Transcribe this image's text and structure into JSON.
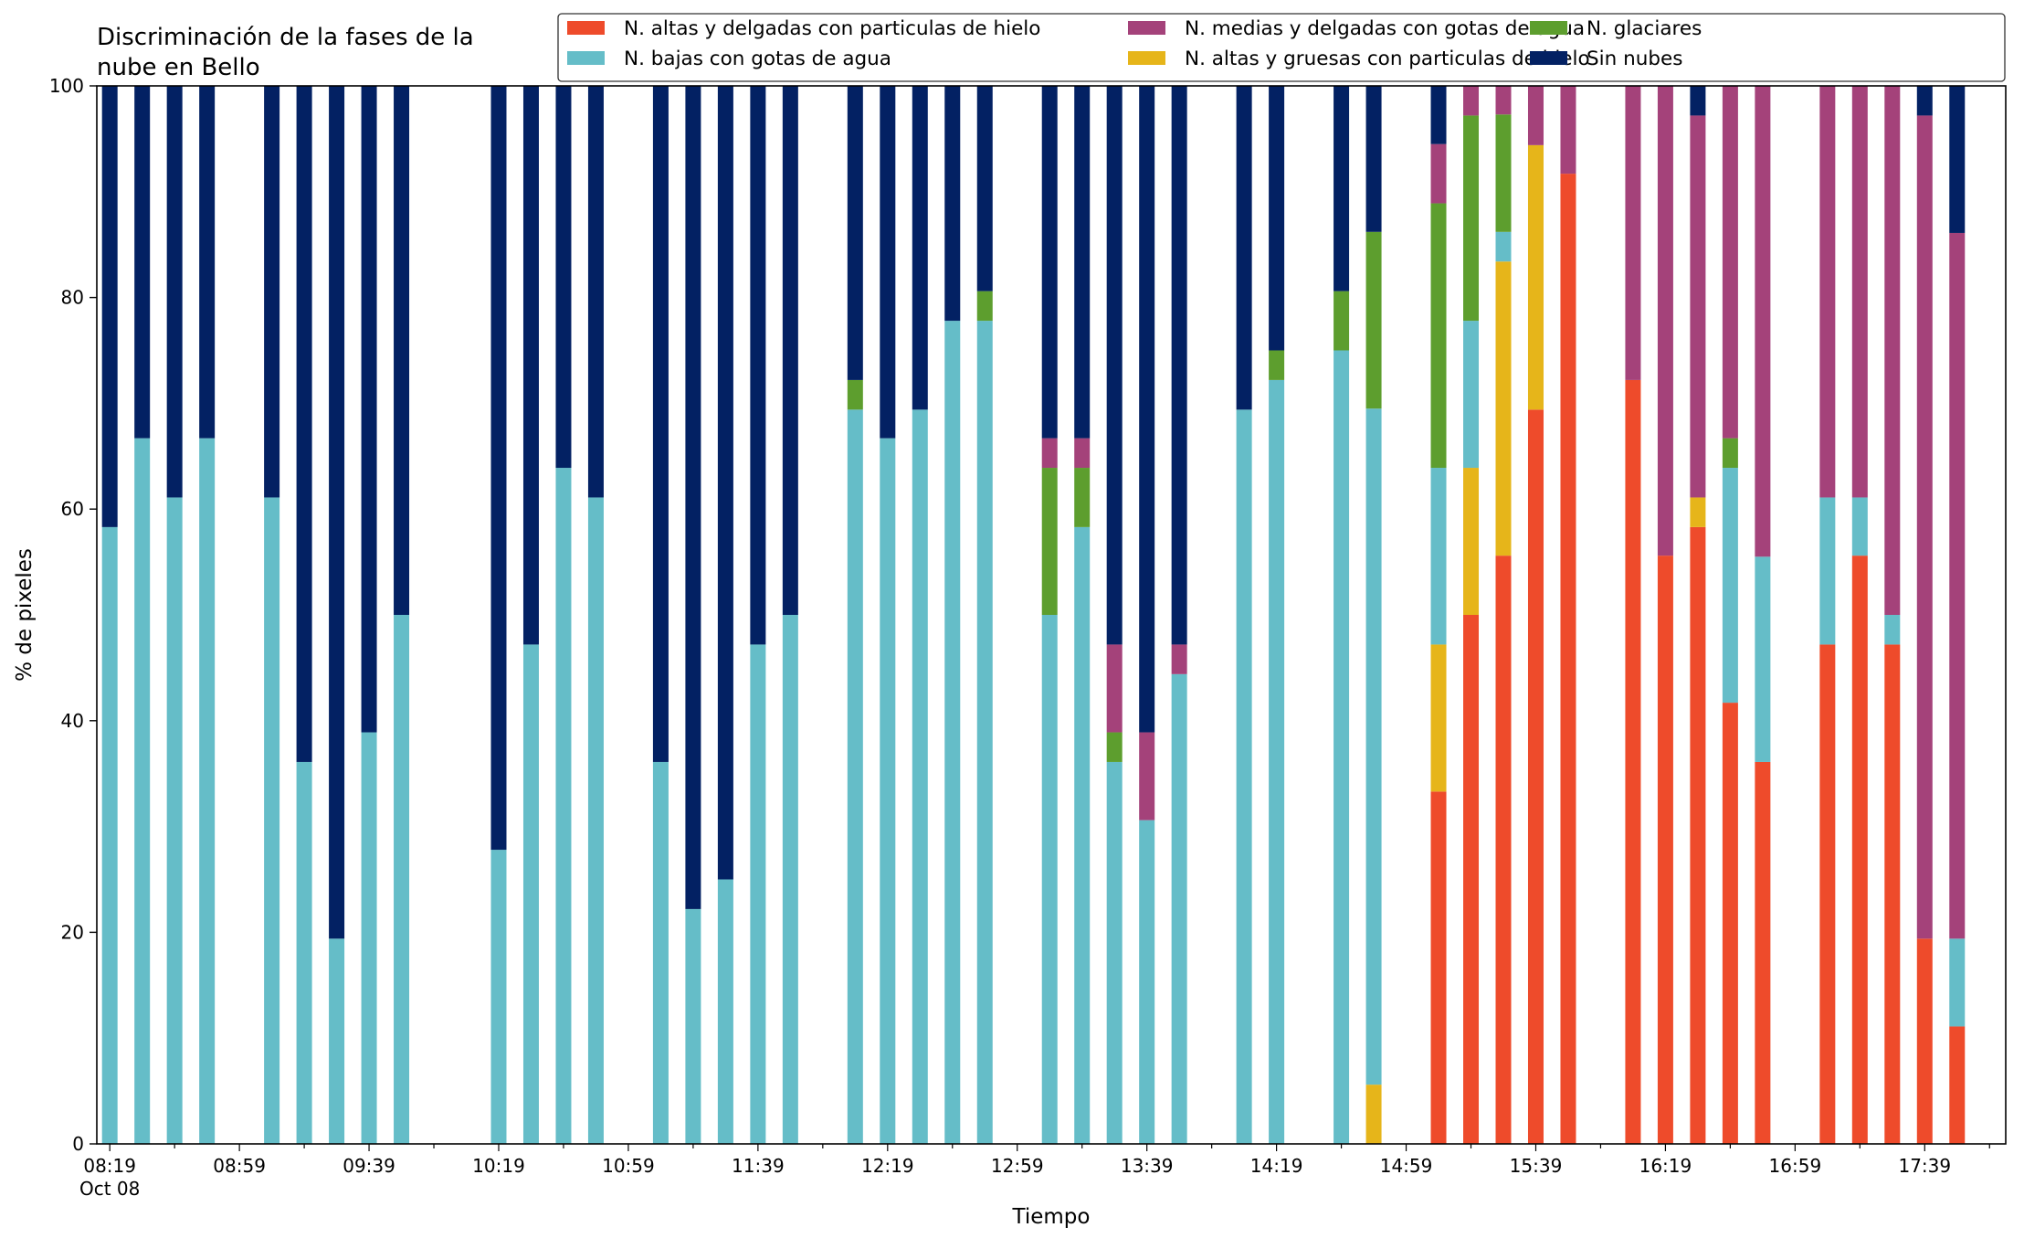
{
  "chart_data": {
    "type": "bar",
    "stacked": true,
    "title": "Discriminación de la fases de la\nnube en Bello",
    "xlabel": "Tiempo",
    "ylabel": "% de pixeles",
    "ylim": [
      0,
      100
    ],
    "yticks": [
      0,
      20,
      40,
      60,
      80,
      100
    ],
    "xlim_minutes": [
      "08:15",
      "18:04"
    ],
    "x_major_ticks": [
      {
        "time": "08:19",
        "label": "08:19",
        "sublabel": "Oct 08"
      },
      {
        "time": "08:59",
        "label": "08:59"
      },
      {
        "time": "09:39",
        "label": "09:39"
      },
      {
        "time": "10:19",
        "label": "10:19"
      },
      {
        "time": "10:59",
        "label": "10:59"
      },
      {
        "time": "11:39",
        "label": "11:39"
      },
      {
        "time": "12:19",
        "label": "12:19"
      },
      {
        "time": "12:59",
        "label": "12:59"
      },
      {
        "time": "13:39",
        "label": "13:39"
      },
      {
        "time": "14:19",
        "label": "14:19"
      },
      {
        "time": "14:59",
        "label": "14:59"
      },
      {
        "time": "15:39",
        "label": "15:39"
      },
      {
        "time": "16:19",
        "label": "16:19"
      },
      {
        "time": "16:59",
        "label": "16:59"
      },
      {
        "time": "17:39",
        "label": "17:39"
      }
    ],
    "grid": false,
    "legend_position": "top-right",
    "series": [
      {
        "name": "N. altas y delgadas con particulas de hielo",
        "color": "#EE4B2B"
      },
      {
        "name": "N. altas y gruesas con particulas de hielo",
        "color": "#E6B51A"
      },
      {
        "name": "N. bajas con gotas de agua",
        "color": "#65BDC8"
      },
      {
        "name": "N. glaciares",
        "color": "#5D9E2E"
      },
      {
        "name": "N. medias y delgadas con gotas de agua",
        "color": "#A4427A"
      },
      {
        "name": "Sin nubes",
        "color": "#032163"
      }
    ],
    "legend_order": [
      0,
      2,
      4,
      1,
      3,
      5
    ],
    "bars": [
      {
        "time": "08:19",
        "values": [
          0,
          0,
          58.3,
          0,
          0,
          41.7
        ]
      },
      {
        "time": "08:29",
        "values": [
          0,
          0,
          66.7,
          0,
          0,
          33.3
        ]
      },
      {
        "time": "08:39",
        "values": [
          0,
          0,
          61.1,
          0,
          0,
          38.9
        ]
      },
      {
        "time": "08:49",
        "values": [
          0,
          0,
          66.7,
          0,
          0,
          33.3
        ]
      },
      {
        "time": "09:09",
        "values": [
          0,
          0,
          61.1,
          0,
          0,
          38.9
        ]
      },
      {
        "time": "09:19",
        "values": [
          0,
          0,
          36.1,
          0,
          0,
          63.9
        ]
      },
      {
        "time": "09:29",
        "values": [
          0,
          0,
          19.4,
          0,
          0,
          80.6
        ]
      },
      {
        "time": "09:39",
        "values": [
          0,
          0,
          38.9,
          0,
          0,
          61.1
        ]
      },
      {
        "time": "09:49",
        "values": [
          0,
          0,
          50.0,
          0,
          0,
          50.0
        ]
      },
      {
        "time": "10:19",
        "values": [
          0,
          0,
          27.8,
          0,
          0,
          72.2
        ]
      },
      {
        "time": "10:29",
        "values": [
          0,
          0,
          47.2,
          0,
          0,
          52.8
        ]
      },
      {
        "time": "10:39",
        "values": [
          0,
          0,
          63.9,
          0,
          0,
          36.1
        ]
      },
      {
        "time": "10:49",
        "values": [
          0,
          0,
          61.1,
          0,
          0,
          38.9
        ]
      },
      {
        "time": "11:09",
        "values": [
          0,
          0,
          36.1,
          0,
          0,
          63.9
        ]
      },
      {
        "time": "11:19",
        "values": [
          0,
          0,
          22.2,
          0,
          0,
          77.8
        ]
      },
      {
        "time": "11:29",
        "values": [
          0,
          0,
          25.0,
          0,
          0,
          75.0
        ]
      },
      {
        "time": "11:39",
        "values": [
          0,
          0,
          47.2,
          0,
          0,
          52.8
        ]
      },
      {
        "time": "11:49",
        "values": [
          0,
          0,
          50.0,
          0,
          0,
          50.0
        ]
      },
      {
        "time": "12:09",
        "values": [
          0,
          0,
          69.4,
          2.8,
          0,
          27.8
        ]
      },
      {
        "time": "12:19",
        "values": [
          0,
          0,
          66.7,
          0,
          0,
          33.3
        ]
      },
      {
        "time": "12:29",
        "values": [
          0,
          0,
          69.4,
          0,
          0,
          30.6
        ]
      },
      {
        "time": "12:39",
        "values": [
          0,
          0,
          77.8,
          0,
          0,
          22.2
        ]
      },
      {
        "time": "12:49",
        "values": [
          0,
          0,
          77.8,
          2.8,
          0,
          19.4
        ]
      },
      {
        "time": "13:09",
        "values": [
          0,
          0,
          50.0,
          13.9,
          2.8,
          33.3
        ]
      },
      {
        "time": "13:19",
        "values": [
          0,
          0,
          58.3,
          5.6,
          2.8,
          33.3
        ]
      },
      {
        "time": "13:29",
        "values": [
          0,
          0,
          36.1,
          2.8,
          8.3,
          52.8
        ]
      },
      {
        "time": "13:39",
        "values": [
          0,
          0,
          30.6,
          0,
          8.3,
          61.1
        ]
      },
      {
        "time": "13:49",
        "values": [
          0,
          0,
          44.4,
          0,
          2.8,
          52.8
        ]
      },
      {
        "time": "14:09",
        "values": [
          0,
          0,
          69.4,
          0,
          0,
          30.6
        ]
      },
      {
        "time": "14:19",
        "values": [
          0,
          0,
          72.2,
          2.8,
          0,
          25.0
        ]
      },
      {
        "time": "14:39",
        "values": [
          0,
          0,
          75.0,
          5.6,
          0,
          19.4
        ]
      },
      {
        "time": "14:49",
        "values": [
          0,
          5.6,
          63.9,
          16.7,
          0,
          13.8
        ]
      },
      {
        "time": "15:09",
        "values": [
          33.3,
          13.9,
          16.7,
          25.0,
          5.6,
          5.5
        ]
      },
      {
        "time": "15:19",
        "values": [
          50.0,
          13.9,
          13.9,
          19.4,
          2.8,
          0
        ]
      },
      {
        "time": "15:29",
        "values": [
          55.6,
          27.8,
          2.8,
          11.1,
          2.7,
          0
        ]
      },
      {
        "time": "15:39",
        "values": [
          69.4,
          25.0,
          0,
          0,
          5.6,
          0
        ]
      },
      {
        "time": "15:49",
        "values": [
          91.7,
          0,
          0,
          0,
          8.3,
          0
        ]
      },
      {
        "time": "16:09",
        "values": [
          72.2,
          0,
          0,
          0,
          27.8,
          0
        ]
      },
      {
        "time": "16:19",
        "values": [
          55.6,
          0,
          0,
          0,
          44.4,
          0
        ]
      },
      {
        "time": "16:29",
        "values": [
          58.3,
          2.8,
          0,
          0,
          36.1,
          2.8
        ]
      },
      {
        "time": "16:39",
        "values": [
          41.7,
          0,
          22.2,
          2.8,
          33.3,
          0
        ]
      },
      {
        "time": "16:49",
        "values": [
          36.1,
          0,
          19.4,
          0,
          44.5,
          0
        ]
      },
      {
        "time": "17:09",
        "values": [
          47.2,
          0,
          13.9,
          0,
          38.9,
          0
        ]
      },
      {
        "time": "17:19",
        "values": [
          55.6,
          0,
          5.5,
          0,
          38.9,
          0
        ]
      },
      {
        "time": "17:29",
        "values": [
          47.2,
          0,
          2.8,
          0,
          50.0,
          0
        ]
      },
      {
        "time": "17:39",
        "values": [
          19.4,
          0,
          0,
          0,
          77.8,
          2.8
        ]
      },
      {
        "time": "17:49",
        "values": [
          11.1,
          0,
          8.3,
          0,
          66.7,
          13.9
        ]
      }
    ]
  }
}
